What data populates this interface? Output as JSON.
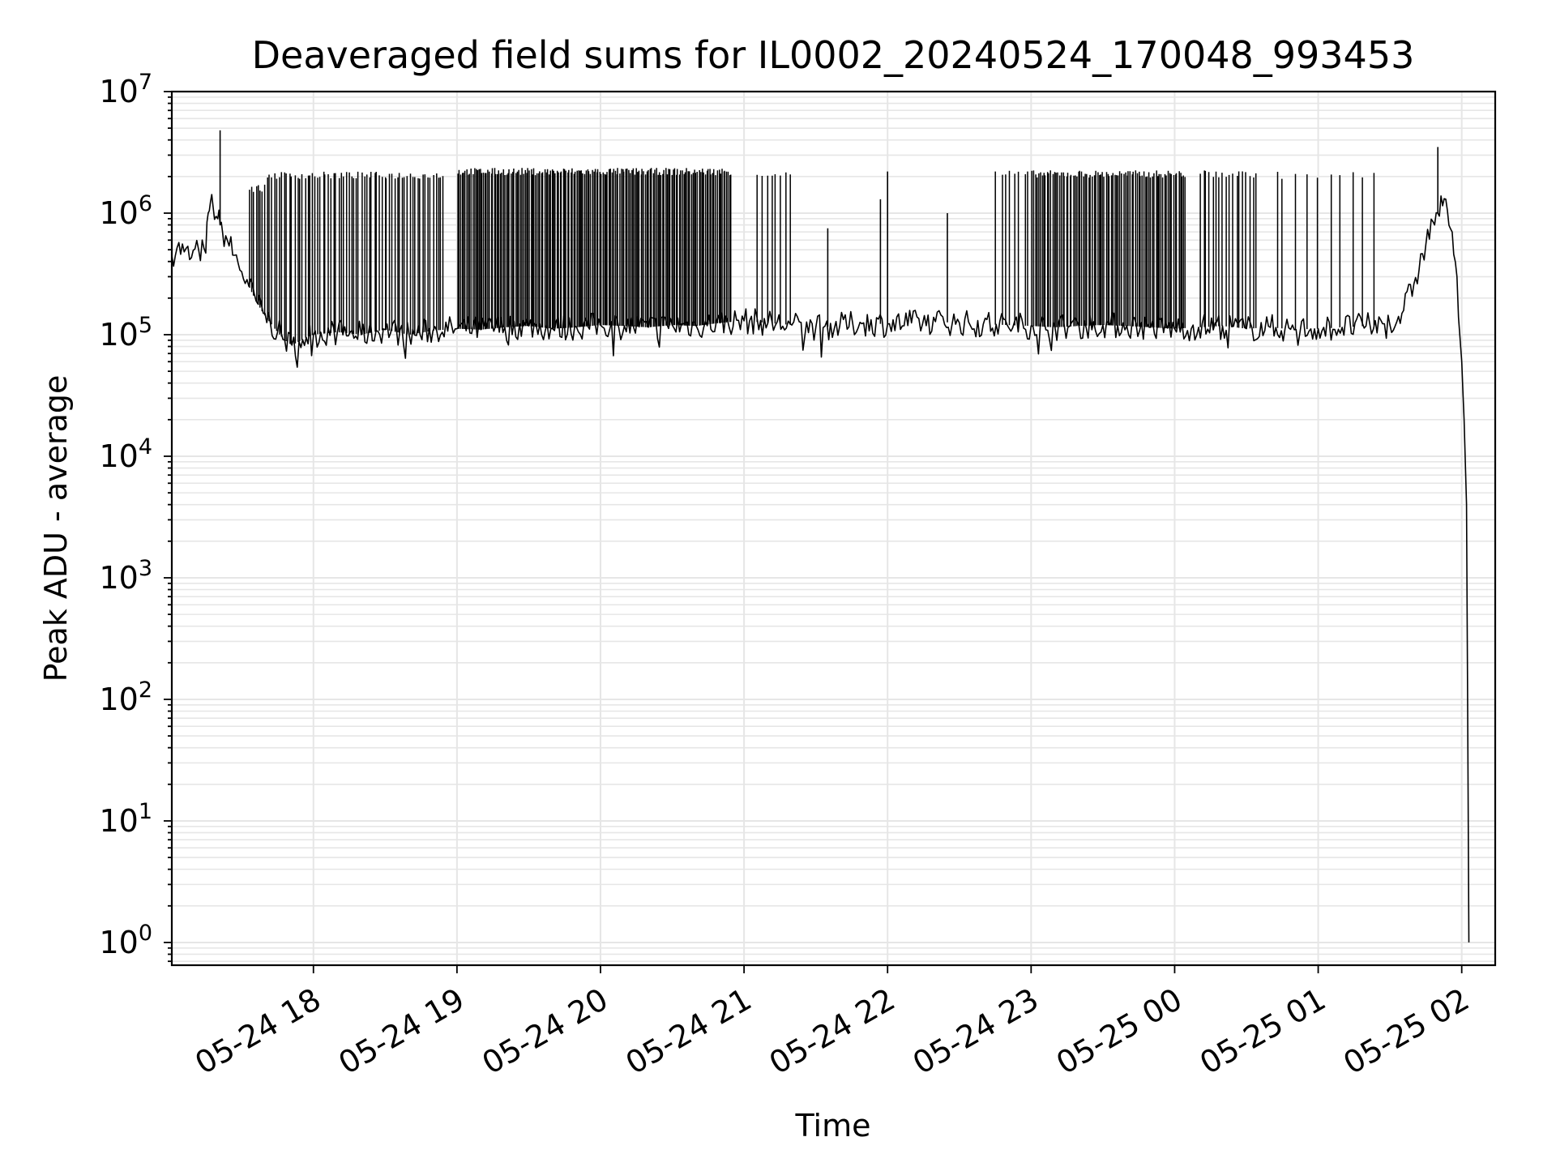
{
  "chart_data": {
    "type": "line",
    "title": "Deaveraged field sums for IL0002_20240524_170048_993453",
    "xlabel": "Time",
    "ylabel": "Peak ADU - average",
    "yscale": "log",
    "ylim": [
      0.65,
      10000000
    ],
    "xlim": [
      "2024-05-24 17:00:48",
      "2024-05-25 02:14:00"
    ],
    "grid": true,
    "line_color": "#000000",
    "grid_color": "#e6e6e6",
    "x_ticks": [
      {
        "value": "2024-05-24 18:00",
        "label": "05-24 18"
      },
      {
        "value": "2024-05-24 19:00",
        "label": "05-24 19"
      },
      {
        "value": "2024-05-24 20:00",
        "label": "05-24 20"
      },
      {
        "value": "2024-05-24 21:00",
        "label": "05-24 21"
      },
      {
        "value": "2024-05-24 22:00",
        "label": "05-24 22"
      },
      {
        "value": "2024-05-24 23:00",
        "label": "05-24 23"
      },
      {
        "value": "2024-05-25 00:00",
        "label": "05-25 00"
      },
      {
        "value": "2024-05-25 01:00",
        "label": "05-25 01"
      },
      {
        "value": "2024-05-25 02:00",
        "label": "05-25 02"
      }
    ],
    "y_ticks": [
      {
        "value": 1,
        "base": "10",
        "exp": "0"
      },
      {
        "value": 10,
        "base": "10",
        "exp": "1"
      },
      {
        "value": 100,
        "base": "10",
        "exp": "2"
      },
      {
        "value": 1000,
        "base": "10",
        "exp": "3"
      },
      {
        "value": 10000,
        "base": "10",
        "exp": "4"
      },
      {
        "value": 100000,
        "base": "10",
        "exp": "5"
      },
      {
        "value": 1000000,
        "base": "10",
        "exp": "6"
      },
      {
        "value": 10000000,
        "base": "10",
        "exp": "7"
      }
    ],
    "series": [
      {
        "x": [
          "2024-05-24 17:00:48",
          "2024-05-24 17:03",
          "2024-05-24 17:06",
          "2024-05-24 17:09",
          "2024-05-24 17:12",
          "2024-05-24 17:15",
          "2024-05-24 17:16",
          "2024-05-24 17:17",
          "2024-05-24 17:18",
          "2024-05-24 17:20",
          "2024-05-24 17:21",
          "2024-05-24 17:22",
          "2024-05-24 17:24",
          "2024-05-24 17:27",
          "2024-05-24 17:30",
          "2024-05-24 17:33",
          "2024-05-24 17:36",
          "2024-05-24 17:39",
          "2024-05-24 17:42",
          "2024-05-24 17:45",
          "2024-05-24 17:48",
          "2024-05-24 17:51",
          "2024-05-24 17:54",
          "2024-05-24 17:57",
          "2024-05-24 18:00",
          "2024-05-24 18:10",
          "2024-05-24 18:20",
          "2024-05-24 18:30",
          "2024-05-24 18:40",
          "2024-05-24 18:50",
          "2024-05-24 19:00",
          "2024-05-24 19:10",
          "2024-05-24 19:20",
          "2024-05-24 19:30",
          "2024-05-24 19:40",
          "2024-05-24 19:50",
          "2024-05-24 20:00",
          "2024-05-24 20:10",
          "2024-05-24 20:20",
          "2024-05-24 20:30",
          "2024-05-24 20:40",
          "2024-05-24 20:50",
          "2024-05-24 21:00",
          "2024-05-24 21:10",
          "2024-05-24 21:20",
          "2024-05-24 21:30",
          "2024-05-24 21:40",
          "2024-05-24 21:50",
          "2024-05-24 22:00",
          "2024-05-24 22:10",
          "2024-05-24 22:20",
          "2024-05-24 22:30",
          "2024-05-24 22:40",
          "2024-05-24 22:50",
          "2024-05-24 23:00",
          "2024-05-24 23:10",
          "2024-05-24 23:20",
          "2024-05-24 23:30",
          "2024-05-24 23:40",
          "2024-05-24 23:50",
          "2024-05-25 00:00",
          "2024-05-25 00:10",
          "2024-05-25 00:20",
          "2024-05-25 00:30",
          "2024-05-25 00:40",
          "2024-05-25 00:50",
          "2024-05-25 01:00",
          "2024-05-25 01:10",
          "2024-05-25 01:20",
          "2024-05-25 01:30",
          "2024-05-25 01:35",
          "2024-05-25 01:40",
          "2024-05-25 01:45",
          "2024-05-25 01:48",
          "2024-05-25 01:50",
          "2024-05-25 01:52",
          "2024-05-25 01:54",
          "2024-05-25 01:56",
          "2024-05-25 01:58",
          "2024-05-25 02:00",
          "2024-05-25 02:01",
          "2024-05-25 02:02",
          "2024-05-25 02:03"
        ],
        "y": [
          450000,
          520000,
          480000,
          430000,
          500000,
          470000,
          1000000,
          1250000,
          1150000,
          900000,
          800000,
          700000,
          600000,
          450000,
          330000,
          250000,
          190000,
          150000,
          125000,
          105000,
          90000,
          82000,
          88000,
          95000,
          100000,
          105000,
          100000,
          110000,
          100000,
          108000,
          112000,
          110000,
          115000,
          118000,
          112000,
          115000,
          120000,
          118000,
          115000,
          120000,
          118000,
          125000,
          130000,
          125000,
          120000,
          115000,
          118000,
          125000,
          122000,
          125000,
          128000,
          125000,
          122000,
          120000,
          118000,
          115000,
          118000,
          120000,
          118000,
          115000,
          112000,
          115000,
          118000,
          112000,
          115000,
          110000,
          112000,
          115000,
          118000,
          120000,
          150000,
          260000,
          550000,
          850000,
          1000000,
          1150000,
          1050000,
          700000,
          300000,
          60000,
          20000,
          4000,
          1
        ]
      }
    ],
    "spikes": [
      {
        "x": "2024-05-24 17:21",
        "y": 4800000
      },
      {
        "x": "2024-05-25 01:50",
        "y": 3500000
      },
      {
        "x": "2024-05-24 22:00",
        "y": 2200000
      },
      {
        "x": "2024-05-24 21:35",
        "y": 750000
      },
      {
        "x": "2024-05-24 21:57",
        "y": 1300000
      },
      {
        "x": "2024-05-24 22:25",
        "y": 1000000
      }
    ],
    "spike_bands": [
      {
        "start": "2024-05-24 17:33",
        "end": "2024-05-24 17:40",
        "count": 8,
        "y": 1600000
      },
      {
        "start": "2024-05-24 17:40",
        "end": "2024-05-24 18:55",
        "count": 70,
        "y": 2050000
      },
      {
        "start": "2024-05-24 19:00",
        "end": "2024-05-24 20:55",
        "count": 180,
        "y": 2200000
      },
      {
        "start": "2024-05-24 21:05",
        "end": "2024-05-24 21:20",
        "count": 8,
        "y": 2100000
      },
      {
        "start": "2024-05-24 22:45",
        "end": "2024-05-24 23:00",
        "count": 8,
        "y": 2100000
      },
      {
        "start": "2024-05-24 23:00",
        "end": "2024-05-25 00:05",
        "count": 90,
        "y": 2100000
      },
      {
        "start": "2024-05-25 00:10",
        "end": "2024-05-25 00:35",
        "count": 18,
        "y": 2100000
      },
      {
        "start": "2024-05-25 00:40",
        "end": "2024-05-25 01:25",
        "count": 10,
        "y": 2050000
      }
    ]
  }
}
